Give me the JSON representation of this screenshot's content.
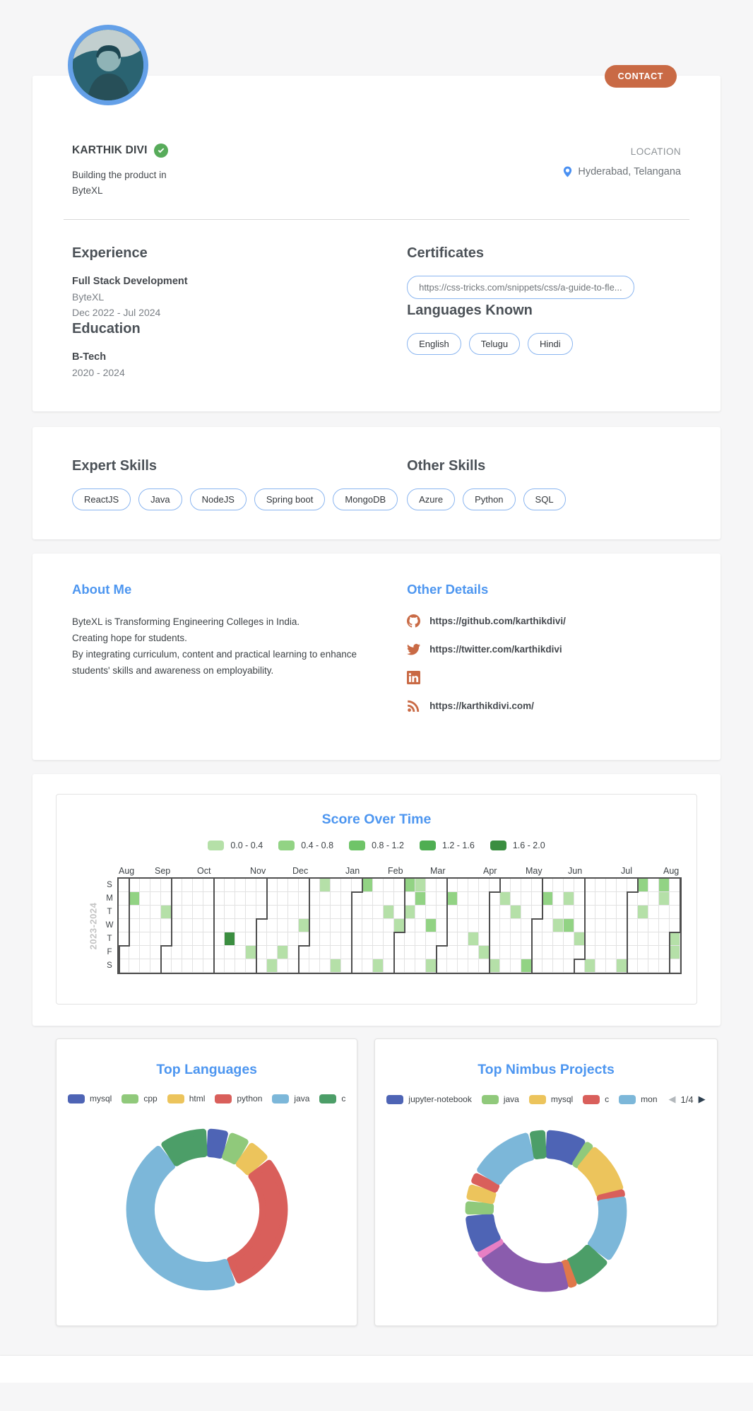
{
  "colors": {
    "accent_blue": "#4d96f0",
    "accent_orange": "#c96a45",
    "chip_border": "#8ab5f0",
    "avatar_ring": "#64a0e8",
    "badge_green": "#57ab5a"
  },
  "profile": {
    "name": "KARTHIK DIVI",
    "tagline": "Building the product in ByteXL",
    "contact_label": "CONTACT",
    "location_label": "LOCATION",
    "location_value": "Hyderabad, Telangana"
  },
  "experience": {
    "heading": "Experience",
    "role": "Full Stack Development",
    "company": "ByteXL",
    "dates": "Dec 2022 - Jul 2024"
  },
  "education": {
    "heading": "Education",
    "degree": "B-Tech",
    "years": "2020 - 2024"
  },
  "certificates": {
    "heading": "Certificates",
    "items": [
      "https://css-tricks.com/snippets/css/a-guide-to-fle..."
    ]
  },
  "languages_known": {
    "heading": "Languages Known",
    "items": [
      "English",
      "Telugu",
      "Hindi"
    ]
  },
  "skills": {
    "expert": {
      "heading": "Expert Skills",
      "items": [
        "ReactJS",
        "Java",
        "NodeJS",
        "Spring boot",
        "MongoDB"
      ]
    },
    "other": {
      "heading": "Other Skills",
      "items": [
        "Azure",
        "Python",
        "SQL"
      ]
    }
  },
  "about": {
    "heading": "About Me",
    "text": "ByteXL is Transforming Engineering Colleges in India.\nCreating hope for students.\nBy integrating curriculum, content and practical learning to enhance students' skills and awareness on employability."
  },
  "other_details": {
    "heading": "Other Details",
    "links": [
      {
        "icon": "github",
        "text": "https://github.com/karthikdivi/"
      },
      {
        "icon": "twitter",
        "text": "https://twitter.com/karthikdivi"
      },
      {
        "icon": "linkedin",
        "text": ""
      },
      {
        "icon": "rss",
        "text": "https://karthikdivi.com/"
      }
    ]
  },
  "chart_data": [
    {
      "type": "heatmap",
      "title": "Score Over Time",
      "year_label": "2023-2024",
      "day_labels": [
        "S",
        "M",
        "T",
        "W",
        "T",
        "F",
        "S"
      ],
      "weeks": 53,
      "legend": [
        {
          "label": "0.0 - 0.4",
          "color": "#b5e0a8"
        },
        {
          "label": "0.4 - 0.8",
          "color": "#92d384"
        },
        {
          "label": "0.8 - 1.2",
          "color": "#6fc468"
        },
        {
          "label": "1.2 - 1.6",
          "color": "#4fae52"
        },
        {
          "label": "1.6 - 2.0",
          "color": "#3b8e40"
        }
      ],
      "level_colors": [
        "#b5e0a8",
        "#92d384",
        "#6fc468",
        "#4fae52",
        "#3b8e40"
      ],
      "months": [
        {
          "label": "Aug",
          "col": 1
        },
        {
          "label": "Sep",
          "col": 5
        },
        {
          "label": "Oct",
          "col": 9
        },
        {
          "label": "Nov",
          "col": 14
        },
        {
          "label": "Dec",
          "col": 18
        },
        {
          "label": "Jan",
          "col": 23
        },
        {
          "label": "Feb",
          "col": 27
        },
        {
          "label": "Mar",
          "col": 31
        },
        {
          "label": "Apr",
          "col": 36
        },
        {
          "label": "May",
          "col": 40
        },
        {
          "label": "Jun",
          "col": 44
        },
        {
          "label": "Jul",
          "col": 49
        },
        {
          "label": "Aug",
          "col": 53
        }
      ],
      "boundaries": [
        {
          "col": 1,
          "split": 5
        },
        {
          "col": 5,
          "split": 5
        },
        {
          "col": 9,
          "split": 0
        },
        {
          "col": 14,
          "split": 3
        },
        {
          "col": 18,
          "split": 5
        },
        {
          "col": 23,
          "split": 1
        },
        {
          "col": 27,
          "split": 4
        },
        {
          "col": 31,
          "split": 5
        },
        {
          "col": 36,
          "split": 1
        },
        {
          "col": 40,
          "split": 3
        },
        {
          "col": 44,
          "split": 6
        },
        {
          "col": 49,
          "split": 1
        },
        {
          "col": 53,
          "split": 4
        }
      ],
      "cells": [
        {
          "col": 1,
          "row": 1,
          "level": 2
        },
        {
          "col": 4,
          "row": 2,
          "level": 1
        },
        {
          "col": 10,
          "row": 4,
          "level": 5
        },
        {
          "col": 12,
          "row": 5,
          "level": 1
        },
        {
          "col": 14,
          "row": 6,
          "level": 1
        },
        {
          "col": 15,
          "row": 5,
          "level": 1
        },
        {
          "col": 17,
          "row": 3,
          "level": 1
        },
        {
          "col": 19,
          "row": 0,
          "level": 1
        },
        {
          "col": 20,
          "row": 6,
          "level": 1
        },
        {
          "col": 23,
          "row": 0,
          "level": 2
        },
        {
          "col": 24,
          "row": 6,
          "level": 1
        },
        {
          "col": 25,
          "row": 2,
          "level": 1
        },
        {
          "col": 26,
          "row": 3,
          "level": 1
        },
        {
          "col": 27,
          "row": 0,
          "level": 2
        },
        {
          "col": 27,
          "row": 2,
          "level": 1
        },
        {
          "col": 28,
          "row": 0,
          "level": 1
        },
        {
          "col": 28,
          "row": 1,
          "level": 2
        },
        {
          "col": 29,
          "row": 3,
          "level": 2
        },
        {
          "col": 29,
          "row": 6,
          "level": 1
        },
        {
          "col": 31,
          "row": 1,
          "level": 2
        },
        {
          "col": 33,
          "row": 4,
          "level": 1
        },
        {
          "col": 34,
          "row": 5,
          "level": 1
        },
        {
          "col": 35,
          "row": 6,
          "level": 1
        },
        {
          "col": 36,
          "row": 1,
          "level": 1
        },
        {
          "col": 37,
          "row": 2,
          "level": 1
        },
        {
          "col": 38,
          "row": 6,
          "level": 2
        },
        {
          "col": 40,
          "row": 1,
          "level": 2
        },
        {
          "col": 41,
          "row": 3,
          "level": 1
        },
        {
          "col": 42,
          "row": 1,
          "level": 1
        },
        {
          "col": 42,
          "row": 3,
          "level": 2
        },
        {
          "col": 43,
          "row": 4,
          "level": 1
        },
        {
          "col": 44,
          "row": 6,
          "level": 1
        },
        {
          "col": 47,
          "row": 6,
          "level": 1
        },
        {
          "col": 49,
          "row": 0,
          "level": 2
        },
        {
          "col": 49,
          "row": 2,
          "level": 1
        },
        {
          "col": 51,
          "row": 0,
          "level": 2
        },
        {
          "col": 51,
          "row": 1,
          "level": 1
        },
        {
          "col": 52,
          "row": 4,
          "level": 1
        },
        {
          "col": 52,
          "row": 5,
          "level": 1
        }
      ]
    },
    {
      "type": "pie",
      "title": "Top Languages",
      "legend_position": "top",
      "segments": [
        {
          "label": "mysql",
          "value": 4.5,
          "color": "#4e64b5"
        },
        {
          "label": "cpp",
          "value": 4.5,
          "color": "#90c97b"
        },
        {
          "label": "html",
          "value": 5,
          "color": "#ecc45c"
        },
        {
          "label": "python",
          "value": 30,
          "color": "#d95f5b"
        },
        {
          "label": "java",
          "value": 46,
          "color": "#7cb7d9"
        },
        {
          "label": "c",
          "value": 10,
          "color": "#4c9e68"
        }
      ]
    },
    {
      "type": "pie",
      "title": "Top Nimbus Projects",
      "legend_position": "top",
      "legend_visible": [
        {
          "label": "jupyter-notebook",
          "color": "#4e64b5"
        },
        {
          "label": "java",
          "color": "#90c97b"
        },
        {
          "label": "mysql",
          "color": "#ecc45c"
        },
        {
          "label": "c",
          "color": "#d95f5b"
        },
        {
          "label": "mon",
          "color": "#7cb7d9"
        }
      ],
      "pagination": {
        "current": "1/4",
        "prev_icon": "◀",
        "next_icon": "▶"
      },
      "segments": [
        {
          "label": "jupyter-notebook",
          "value": 8.5,
          "color": "#4e64b5"
        },
        {
          "label": "",
          "value": 1.5,
          "color": "#90c97b"
        },
        {
          "label": "",
          "value": 11,
          "color": "#ecc45c"
        },
        {
          "label": "",
          "value": 1,
          "color": "#d95f5b"
        },
        {
          "label": "",
          "value": 14,
          "color": "#7cb7d9"
        },
        {
          "label": "",
          "value": 8,
          "color": "#4c9e68"
        },
        {
          "label": "",
          "value": 1.5,
          "color": "#e0784a"
        },
        {
          "label": "",
          "value": 20,
          "color": "#8a5cad"
        },
        {
          "label": "",
          "value": 1,
          "color": "#e77fc4"
        },
        {
          "label": "",
          "value": 8,
          "color": "#4e64b5"
        },
        {
          "label": "",
          "value": 3,
          "color": "#90c97b"
        },
        {
          "label": "",
          "value": 3.5,
          "color": "#ecc45c"
        },
        {
          "label": "",
          "value": 2.5,
          "color": "#d95f5b"
        },
        {
          "label": "",
          "value": 13.5,
          "color": "#7cb7d9"
        },
        {
          "label": "",
          "value": 3.5,
          "color": "#4c9e68"
        }
      ]
    }
  ]
}
